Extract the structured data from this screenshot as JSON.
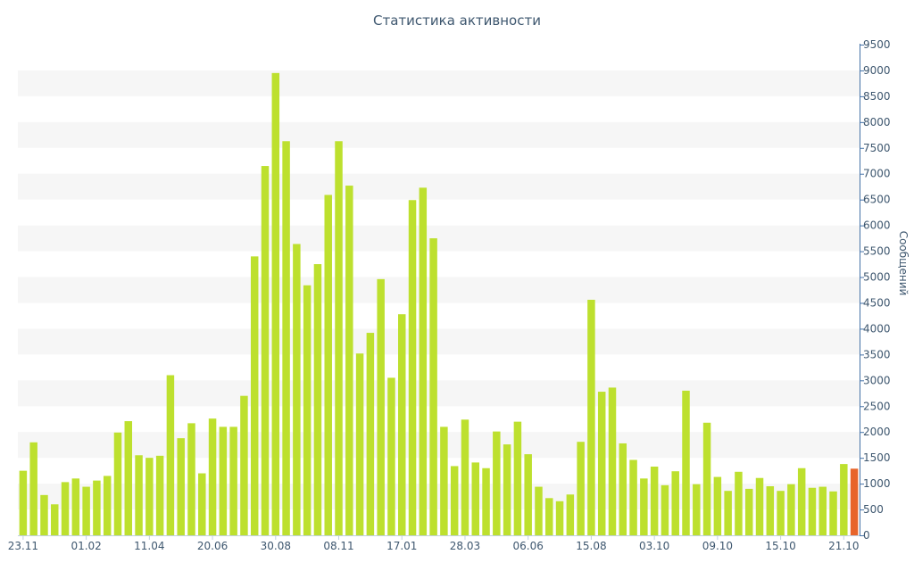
{
  "colors": {
    "bar": "#bde02e",
    "bar_current": "#e8642a",
    "band": "#f6f6f6",
    "axis": "#4572a7",
    "text": "#3e576f"
  },
  "chart_data": {
    "type": "bar",
    "title": "Статистика активности",
    "xlabel": "",
    "ylabel": "Сообщений",
    "y_axis_side": "right",
    "ylim": [
      0,
      9500
    ],
    "y_ticks": [
      0,
      500,
      1000,
      1500,
      2000,
      2500,
      3000,
      3500,
      4000,
      4500,
      5000,
      5500,
      6000,
      6500,
      7000,
      7500,
      8000,
      8500,
      9000,
      9500
    ],
    "x_tick_labels": [
      {
        "index": 0,
        "label": "23.11"
      },
      {
        "index": 6,
        "label": "01.02"
      },
      {
        "index": 12,
        "label": "11.04"
      },
      {
        "index": 18,
        "label": "20.06"
      },
      {
        "index": 24,
        "label": "30.08"
      },
      {
        "index": 30,
        "label": "08.11"
      },
      {
        "index": 36,
        "label": "17.01"
      },
      {
        "index": 42,
        "label": "28.03"
      },
      {
        "index": 48,
        "label": "06.06"
      },
      {
        "index": 54,
        "label": "15.08"
      },
      {
        "index": 60,
        "label": "03.10"
      },
      {
        "index": 66,
        "label": "09.10"
      },
      {
        "index": 72,
        "label": "15.10"
      },
      {
        "index": 78,
        "label": "21.10"
      }
    ],
    "highlight_last": true,
    "grid": "alternating horizontal bands",
    "values": [
      1250,
      1800,
      780,
      600,
      1030,
      1100,
      940,
      1060,
      1150,
      1990,
      2210,
      1550,
      1500,
      1540,
      3100,
      1880,
      2170,
      1200,
      2260,
      2100,
      2100,
      2700,
      5400,
      7150,
      8950,
      7630,
      5640,
      4840,
      5250,
      6590,
      7630,
      6770,
      3520,
      3920,
      4960,
      3050,
      4280,
      6490,
      6730,
      5750,
      2100,
      1340,
      2240,
      1410,
      1300,
      2010,
      1760,
      2200,
      1570,
      940,
      720,
      660,
      790,
      1810,
      4560,
      2780,
      2860,
      1780,
      1460,
      1100,
      1330,
      970,
      1240,
      2800,
      990,
      2180,
      1130,
      860,
      1230,
      900,
      1110,
      950,
      860,
      990,
      1300,
      920,
      940,
      850,
      1380,
      1290
    ]
  }
}
